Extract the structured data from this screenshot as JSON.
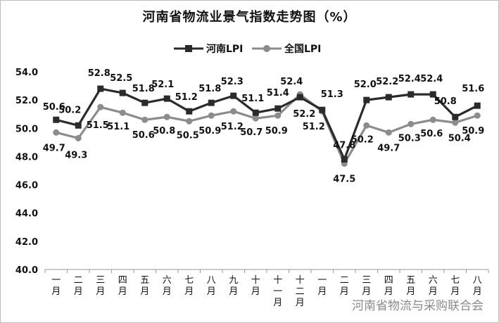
{
  "chart_data": {
    "type": "line",
    "title": "河南省物流业景气指数走势图（%）",
    "categories": [
      "一月",
      "二月",
      "三月",
      "四月",
      "五月",
      "六月",
      "七月",
      "八月",
      "九月",
      "十月",
      "十一月",
      "十二月",
      "一月",
      "二月",
      "三月",
      "四月",
      "五月",
      "六月",
      "七月",
      "八月"
    ],
    "category_display": [
      "一\n月",
      "二\n月",
      "三\n月",
      "四\n月",
      "五\n月",
      "六\n月",
      "七\n月",
      "八\n月",
      "九\n月",
      "十\n月",
      "十\n一\n月",
      "十\n二\n月",
      "一\n月",
      "二\n月",
      "三\n月",
      "四\n月",
      "五\n月",
      "六\n月",
      "七\n月",
      "八\n月"
    ],
    "ylim": [
      40,
      54
    ],
    "yticks": [
      "40.0",
      "42.0",
      "44.0",
      "46.0",
      "48.0",
      "50.0",
      "52.0",
      "54.0"
    ],
    "legend_position": "top",
    "series": [
      {
        "name": "河南LPI",
        "color": "#2b2b2b",
        "marker": "square",
        "values": [
          50.6,
          50.2,
          52.8,
          52.5,
          51.8,
          52.1,
          51.2,
          51.8,
          52.3,
          51.1,
          51.4,
          52.2,
          51.3,
          47.8,
          52.0,
          52.2,
          52.4,
          52.4,
          50.8,
          51.6
        ]
      },
      {
        "name": "全国LPI",
        "color": "#8c8c8c",
        "marker": "circle",
        "values": [
          49.7,
          49.3,
          51.5,
          51.1,
          50.6,
          50.8,
          50.5,
          50.9,
          51.2,
          50.7,
          50.9,
          52.4,
          51.2,
          47.5,
          50.2,
          49.7,
          50.3,
          50.6,
          50.4,
          50.9
        ]
      }
    ],
    "data_labels": {
      "henan": [
        "50.6",
        "50.2",
        "52.8",
        "52.5",
        "51.8",
        "52.1",
        "51.2",
        "51.8",
        "52.3",
        "51.1",
        "51.4",
        "52.2",
        "51.3",
        "47.8",
        "52.0",
        "52.2",
        "52.4",
        "52.4",
        "50.8",
        "51.6"
      ],
      "national": [
        "49.7",
        "49.3",
        "51.5",
        "51.1",
        "50.6",
        "50.8",
        "50.5",
        "50.9",
        "51.2",
        "50.7",
        "50.9",
        "52.4",
        "51.2",
        "47.5",
        "50.2",
        "49.7",
        "50.3",
        "50.6",
        "50.4",
        "50.9"
      ]
    },
    "watermark": "河南省物流与采购联合会"
  }
}
